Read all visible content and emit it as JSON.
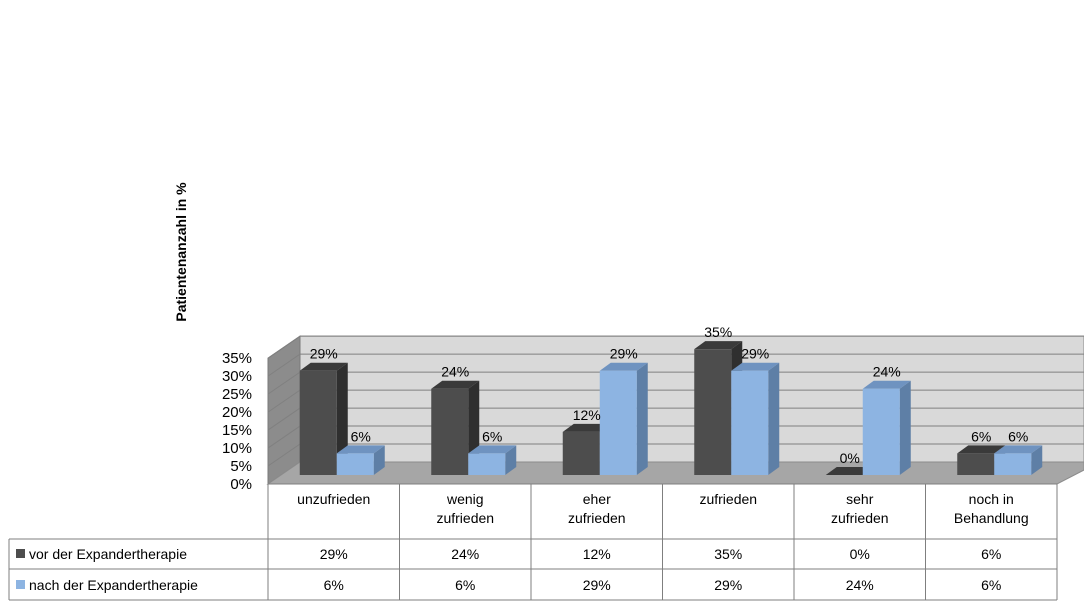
{
  "chart_data": {
    "type": "bar",
    "title": "",
    "xlabel": "",
    "ylabel": "Patientenanzahl in %",
    "ylim": [
      0,
      35
    ],
    "ytick_step": 5,
    "value_format": "percent",
    "grid": true,
    "categories": [
      [
        "unzufrieden"
      ],
      [
        "wenig",
        "zufrieden"
      ],
      [
        "eher",
        "zufrieden"
      ],
      [
        "zufrieden"
      ],
      [
        "sehr",
        "zufrieden"
      ],
      [
        "noch in",
        "Behandlung"
      ]
    ],
    "series": [
      {
        "name": "vor der Expandertherapie",
        "values": [
          29,
          24,
          12,
          35,
          0,
          6
        ],
        "color": "#4d4d4d",
        "side_color": "#2f2f2f",
        "top_color": "#3a3a3a"
      },
      {
        "name": "nach der Expandertherapie",
        "values": [
          6,
          6,
          29,
          29,
          24,
          6
        ],
        "color": "#8db4e2",
        "side_color": "#5e7fa6",
        "top_color": "#6f93c0"
      }
    ],
    "wall_color": "#d9d9d9",
    "floor_color": "#a6a6a6",
    "side_wall_color": "#8c8c8c",
    "data_table": true
  }
}
